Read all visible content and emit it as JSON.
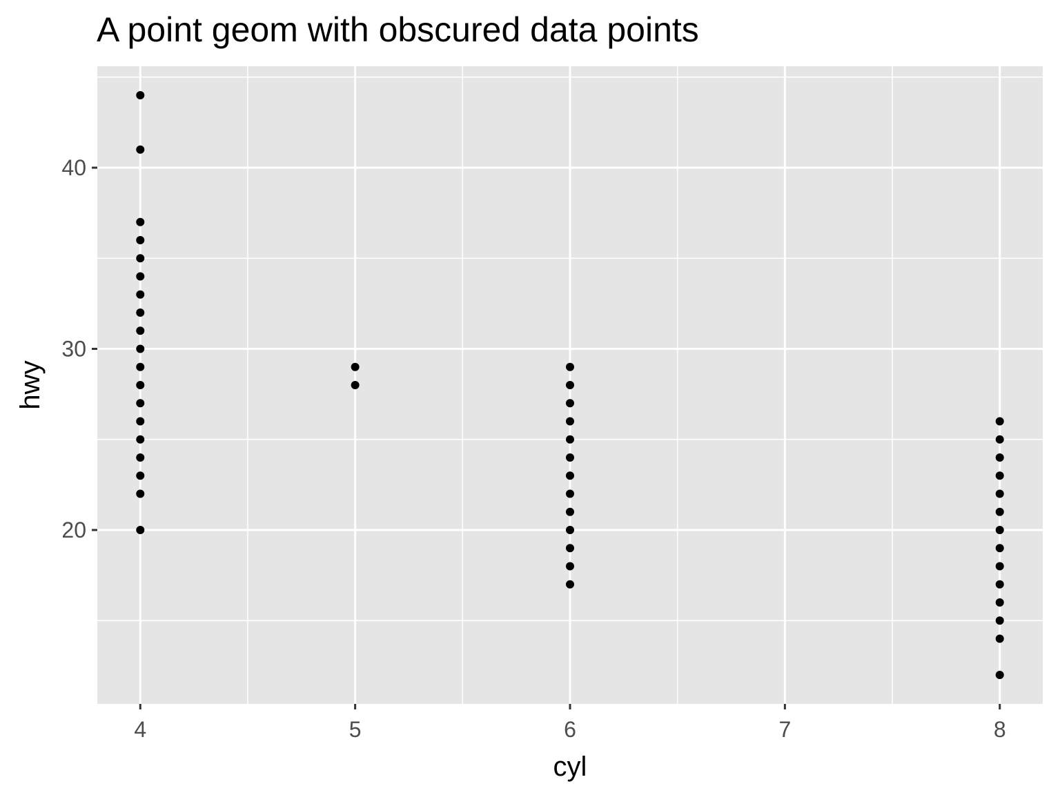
{
  "chart_data": {
    "type": "scatter",
    "title": "A point geom with obscured data points",
    "xlabel": "cyl",
    "ylabel": "hwy",
    "xlim": [
      3.8,
      8.2
    ],
    "ylim": [
      10.4,
      45.6
    ],
    "x_ticks": [
      4,
      5,
      6,
      7,
      8
    ],
    "x_tick_labels": [
      "4",
      "5",
      "6",
      "7",
      "8"
    ],
    "y_ticks": [
      20,
      30,
      40
    ],
    "y_tick_labels": [
      "20",
      "30",
      "40"
    ],
    "grid": true,
    "point_color": "#000000",
    "panel_background": "#e5e5e5",
    "grid_color": "#ffffff",
    "series": [
      {
        "points": [
          [
            4,
            44
          ],
          [
            4,
            41
          ],
          [
            4,
            37
          ],
          [
            4,
            36
          ],
          [
            4,
            35
          ],
          [
            4,
            34
          ],
          [
            4,
            33
          ],
          [
            4,
            32
          ],
          [
            4,
            31
          ],
          [
            4,
            30
          ],
          [
            4,
            29
          ],
          [
            4,
            28
          ],
          [
            4,
            27
          ],
          [
            4,
            26
          ],
          [
            4,
            25
          ],
          [
            4,
            24
          ],
          [
            4,
            23
          ],
          [
            4,
            22
          ],
          [
            4,
            20
          ],
          [
            5,
            29
          ],
          [
            5,
            28
          ],
          [
            6,
            29
          ],
          [
            6,
            28
          ],
          [
            6,
            27
          ],
          [
            6,
            26
          ],
          [
            6,
            25
          ],
          [
            6,
            24
          ],
          [
            6,
            23
          ],
          [
            6,
            22
          ],
          [
            6,
            21
          ],
          [
            6,
            20
          ],
          [
            6,
            19
          ],
          [
            6,
            18
          ],
          [
            6,
            17
          ],
          [
            8,
            26
          ],
          [
            8,
            25
          ],
          [
            8,
            24
          ],
          [
            8,
            23
          ],
          [
            8,
            22
          ],
          [
            8,
            21
          ],
          [
            8,
            20
          ],
          [
            8,
            19
          ],
          [
            8,
            18
          ],
          [
            8,
            17
          ],
          [
            8,
            16
          ],
          [
            8,
            15
          ],
          [
            8,
            14
          ],
          [
            8,
            12
          ]
        ]
      }
    ]
  }
}
